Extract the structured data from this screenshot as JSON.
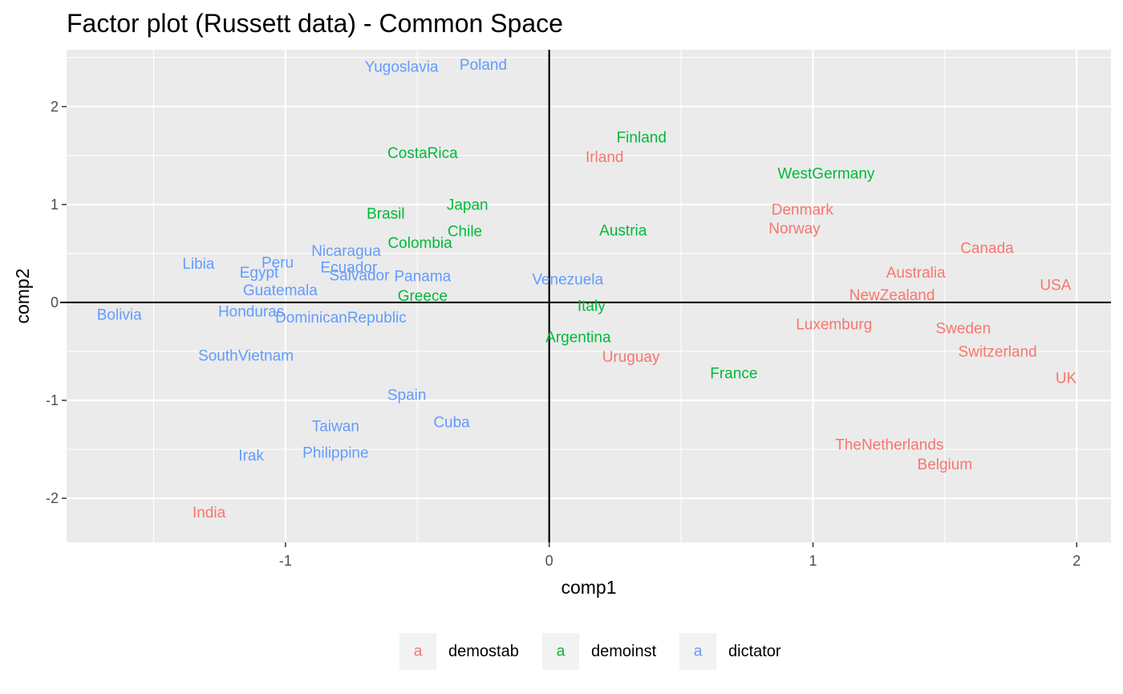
{
  "colors": {
    "panel_bg": "#ebebeb",
    "grid": "#ffffff",
    "ref_line": "#000000",
    "demostab": "#f8766d",
    "demoinst": "#00ba38",
    "dictator": "#619cff"
  },
  "chart_data": {
    "type": "scatter",
    "title": "Factor plot (Russett data) - Common Space",
    "xlabel": "comp1",
    "ylabel": "comp2",
    "xlim": [
      -1.83,
      2.13
    ],
    "ylim": [
      -2.45,
      2.58
    ],
    "x_ticks": [
      -1,
      0,
      1,
      2
    ],
    "x_tick_labels": [
      "-1",
      "0",
      "1",
      "2"
    ],
    "y_ticks": [
      -2,
      -1,
      0,
      1,
      2
    ],
    "y_tick_labels": [
      "-2",
      "-1",
      "0",
      "1",
      "2"
    ],
    "grid": true,
    "reference_lines": {
      "x": 0,
      "y": 0
    },
    "legend_position": "bottom",
    "legend_key_glyph": "a",
    "series": [
      {
        "name": "demostab",
        "color": "#f8766d",
        "points": [
          {
            "label": "Irland",
            "x": 0.21,
            "y": 1.48
          },
          {
            "label": "Denmark",
            "x": 0.96,
            "y": 0.94
          },
          {
            "label": "Norway",
            "x": 0.93,
            "y": 0.75
          },
          {
            "label": "Canada",
            "x": 1.66,
            "y": 0.55
          },
          {
            "label": "Australia",
            "x": 1.39,
            "y": 0.3
          },
          {
            "label": "USA",
            "x": 1.92,
            "y": 0.17
          },
          {
            "label": "NewZealand",
            "x": 1.3,
            "y": 0.07
          },
          {
            "label": "Luxemburg",
            "x": 1.08,
            "y": -0.23
          },
          {
            "label": "Sweden",
            "x": 1.57,
            "y": -0.27
          },
          {
            "label": "Switzerland",
            "x": 1.7,
            "y": -0.51
          },
          {
            "label": "UK",
            "x": 1.96,
            "y": -0.78
          },
          {
            "label": "Uruguay",
            "x": 0.31,
            "y": -0.56
          },
          {
            "label": "TheNetherlands",
            "x": 1.29,
            "y": -1.46
          },
          {
            "label": "Belgium",
            "x": 1.5,
            "y": -1.66
          },
          {
            "label": "India",
            "x": -1.29,
            "y": -2.15
          }
        ]
      },
      {
        "name": "demoinst",
        "color": "#00ba38",
        "points": [
          {
            "label": "Finland",
            "x": 0.35,
            "y": 1.68
          },
          {
            "label": "WestGermany",
            "x": 1.05,
            "y": 1.31
          },
          {
            "label": "CostaRica",
            "x": -0.48,
            "y": 1.52
          },
          {
            "label": "Japan",
            "x": -0.31,
            "y": 0.99
          },
          {
            "label": "Brasil",
            "x": -0.62,
            "y": 0.9
          },
          {
            "label": "Chile",
            "x": -0.32,
            "y": 0.72
          },
          {
            "label": "Colombia",
            "x": -0.49,
            "y": 0.6
          },
          {
            "label": "Austria",
            "x": 0.28,
            "y": 0.73
          },
          {
            "label": "Greece",
            "x": -0.48,
            "y": 0.06
          },
          {
            "label": "Italy",
            "x": 0.16,
            "y": -0.04
          },
          {
            "label": "Argentina",
            "x": 0.11,
            "y": -0.36
          },
          {
            "label": "France",
            "x": 0.7,
            "y": -0.73
          }
        ]
      },
      {
        "name": "dictator",
        "color": "#619cff",
        "points": [
          {
            "label": "Yugoslavia",
            "x": -0.56,
            "y": 2.4
          },
          {
            "label": "Poland",
            "x": -0.25,
            "y": 2.42
          },
          {
            "label": "Nicaragua",
            "x": -0.77,
            "y": 0.52
          },
          {
            "label": "Libia",
            "x": -1.33,
            "y": 0.39
          },
          {
            "label": "Peru",
            "x": -1.03,
            "y": 0.4
          },
          {
            "label": "Egypt",
            "x": -1.1,
            "y": 0.3
          },
          {
            "label": "Ecuador",
            "x": -0.76,
            "y": 0.35
          },
          {
            "label": "Salvador",
            "x": -0.72,
            "y": 0.27
          },
          {
            "label": "Panama",
            "x": -0.48,
            "y": 0.26
          },
          {
            "label": "Guatemala",
            "x": -1.02,
            "y": 0.12
          },
          {
            "label": "Venezuela",
            "x": 0.07,
            "y": 0.23
          },
          {
            "label": "Bolivia",
            "x": -1.63,
            "y": -0.13
          },
          {
            "label": "Honduras",
            "x": -1.13,
            "y": -0.1
          },
          {
            "label": "DominicanRepublic",
            "x": -0.79,
            "y": -0.16
          },
          {
            "label": "SouthVietnam",
            "x": -1.15,
            "y": -0.55
          },
          {
            "label": "Spain",
            "x": -0.54,
            "y": -0.95
          },
          {
            "label": "Cuba",
            "x": -0.37,
            "y": -1.23
          },
          {
            "label": "Taiwan",
            "x": -0.81,
            "y": -1.27
          },
          {
            "label": "Irak",
            "x": -1.13,
            "y": -1.57
          },
          {
            "label": "Philippine",
            "x": -0.81,
            "y": -1.54
          }
        ]
      }
    ]
  }
}
